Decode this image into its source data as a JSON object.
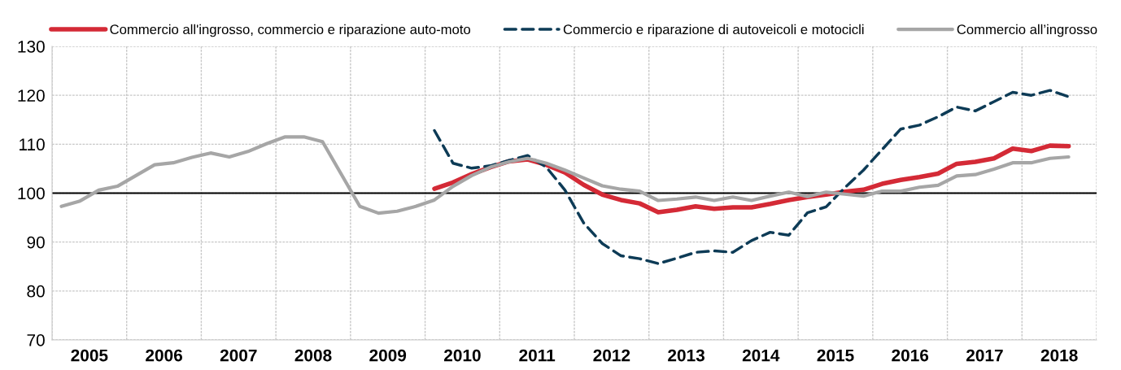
{
  "chart_data": {
    "type": "line",
    "x": [
      2005.125,
      2005.375,
      2005.625,
      2005.875,
      2006.125,
      2006.375,
      2006.625,
      2006.875,
      2007.125,
      2007.375,
      2007.625,
      2007.875,
      2008.125,
      2008.375,
      2008.625,
      2008.875,
      2009.125,
      2009.375,
      2009.625,
      2009.875,
      2010.125,
      2010.375,
      2010.625,
      2010.875,
      2011.125,
      2011.375,
      2011.625,
      2011.875,
      2012.125,
      2012.375,
      2012.625,
      2012.875,
      2013.125,
      2013.375,
      2013.625,
      2013.875,
      2014.125,
      2014.375,
      2014.625,
      2014.875,
      2015.125,
      2015.375,
      2015.625,
      2015.875,
      2016.125,
      2016.375,
      2016.625,
      2016.875,
      2017.125,
      2017.375,
      2017.625,
      2017.875,
      2018.125,
      2018.375,
      2018.625
    ],
    "series": [
      {
        "name": "Commercio all'ingrosso, commercio e riparazione auto-moto",
        "color": "#d42a36",
        "line_style": "solid",
        "values": [
          null,
          null,
          null,
          null,
          null,
          null,
          null,
          null,
          null,
          null,
          null,
          null,
          null,
          null,
          null,
          null,
          null,
          null,
          null,
          null,
          100.9,
          102.2,
          103.9,
          105.3,
          106.5,
          106.9,
          105.8,
          104.2,
          101.7,
          99.7,
          98.6,
          97.9,
          96.1,
          96.6,
          97.3,
          96.8,
          97.1,
          97.1,
          97.8,
          98.6,
          99.2,
          99.7,
          100.3,
          100.7,
          101.9,
          102.7,
          103.3,
          104.0,
          106.0,
          106.4,
          107.1,
          109.1,
          108.6,
          109.7,
          109.6
        ]
      },
      {
        "name": "Commercio e riparazione di autoveicoli e motocicli",
        "color": "#0d3b56",
        "line_style": "dashed",
        "values": [
          null,
          null,
          null,
          null,
          null,
          null,
          null,
          null,
          null,
          null,
          null,
          null,
          null,
          null,
          null,
          null,
          null,
          null,
          null,
          null,
          112.8,
          106.1,
          105.1,
          105.6,
          106.7,
          107.7,
          105.3,
          100.6,
          93.9,
          89.7,
          87.2,
          86.6,
          85.6,
          86.7,
          87.9,
          88.2,
          87.9,
          90.3,
          92.0,
          91.4,
          96.0,
          97.2,
          101.1,
          104.7,
          108.9,
          113.1,
          113.9,
          115.6,
          117.6,
          116.8,
          118.7,
          120.6,
          120.0,
          121.0,
          119.7
        ]
      },
      {
        "name": "Commercio all’ingrosso",
        "color": "#a6a6a6",
        "line_style": "solid",
        "values": [
          97.3,
          98.4,
          100.6,
          101.4,
          103.6,
          105.8,
          106.2,
          107.3,
          108.2,
          107.4,
          108.5,
          110.1,
          111.5,
          111.5,
          110.5,
          103.9,
          97.3,
          95.9,
          96.3,
          97.3,
          98.6,
          101.4,
          103.6,
          105.3,
          106.4,
          107.1,
          106.1,
          104.7,
          103.1,
          101.5,
          100.8,
          100.4,
          98.5,
          98.8,
          99.2,
          98.5,
          99.2,
          98.5,
          99.4,
          100.2,
          99.3,
          100.2,
          99.8,
          99.4,
          100.4,
          100.4,
          101.2,
          101.6,
          103.5,
          103.8,
          104.9,
          106.2,
          106.2,
          107.1,
          107.4
        ]
      }
    ],
    "xlim": [
      2005,
      2019
    ],
    "xticks": [
      {
        "value": 2005,
        "label": null
      },
      {
        "value": 2006,
        "label": null
      },
      {
        "value": 2007,
        "label": null
      },
      {
        "value": 2008,
        "label": null
      },
      {
        "value": 2009,
        "label": null
      },
      {
        "value": 2010,
        "label": null
      },
      {
        "value": 2011,
        "label": null
      },
      {
        "value": 2012,
        "label": null
      },
      {
        "value": 2013,
        "label": null
      },
      {
        "value": 2014,
        "label": null
      },
      {
        "value": 2015,
        "label": null
      },
      {
        "value": 2016,
        "label": null
      },
      {
        "value": 2017,
        "label": null
      },
      {
        "value": 2018,
        "label": null
      },
      {
        "value": 2019,
        "label": null
      },
      {
        "value": 2005.5,
        "label": "2005"
      },
      {
        "value": 2006.5,
        "label": "2006"
      },
      {
        "value": 2007.5,
        "label": "2007"
      },
      {
        "value": 2008.5,
        "label": "2008"
      },
      {
        "value": 2009.5,
        "label": "2009"
      },
      {
        "value": 2010.5,
        "label": "2010"
      },
      {
        "value": 2011.5,
        "label": "2011"
      },
      {
        "value": 2012.5,
        "label": "2012"
      },
      {
        "value": 2013.5,
        "label": "2013"
      },
      {
        "value": 2014.5,
        "label": "2014"
      },
      {
        "value": 2015.5,
        "label": "2015"
      },
      {
        "value": 2016.5,
        "label": "2016"
      },
      {
        "value": 2017.5,
        "label": "2017"
      },
      {
        "value": 2018.5,
        "label": "2018"
      }
    ],
    "ylim": [
      70,
      130
    ],
    "yticks": [
      70,
      80,
      90,
      100,
      110,
      120,
      130
    ],
    "ref_lines": [
      {
        "axis": "y",
        "value": 100,
        "color": "#000000",
        "line_style": "solid"
      }
    ],
    "grid": true,
    "legend": "top",
    "marker": "none"
  }
}
